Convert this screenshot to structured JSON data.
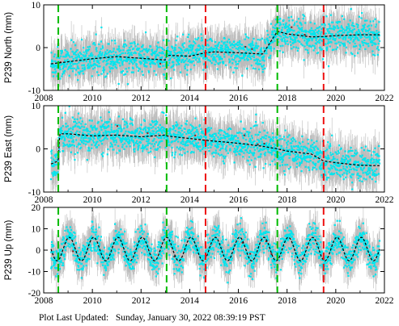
{
  "footer": {
    "label": "Plot Last Updated:",
    "timestamp": "Sunday, January 30, 2022 08:39:19 PST"
  },
  "colors": {
    "scatter": "#00e5ee",
    "error_bars": "#b5b5b5",
    "trend": "#000000",
    "outliers": "#8b1a1a",
    "green_lines": "#00bb00",
    "red_lines": "#ee1111"
  },
  "chart_data": [
    {
      "type": "scatter",
      "component": "north",
      "ylabel": "P239 North (mm)",
      "xlim": [
        2008,
        2022
      ],
      "ylim": [
        -10,
        10
      ],
      "x_ticks": [
        2008,
        2010,
        2012,
        2014,
        2016,
        2018,
        2020,
        2022
      ],
      "y_ticks": [
        -10,
        0,
        10
      ],
      "green_dashed_lines_year": [
        2008.6,
        2013.05,
        2017.6
      ],
      "red_dashed_lines_year": [
        2014.65,
        2019.5
      ],
      "trend": {
        "x": [
          2008.3,
          2009,
          2010,
          2011,
          2012,
          2013,
          2013.05,
          2014,
          2014.65,
          2015,
          2016,
          2017,
          2017.6,
          2018,
          2019,
          2019.5,
          2020,
          2021,
          2021.8
        ],
        "y": [
          -3.8,
          -3.3,
          -2.6,
          -2.1,
          -2.5,
          -2.9,
          -1.8,
          -2.0,
          -1.2,
          -1.0,
          -1.2,
          -1.5,
          3.8,
          3.2,
          2.5,
          2.6,
          2.8,
          3.0,
          3.0
        ]
      },
      "scatter_spread_mm": 2.5
    },
    {
      "type": "scatter",
      "component": "east",
      "ylabel": "P239 East (mm)",
      "xlim": [
        2008,
        2022
      ],
      "ylim": [
        -10,
        10
      ],
      "x_ticks": [
        2008,
        2010,
        2012,
        2014,
        2016,
        2018,
        2020,
        2022
      ],
      "y_ticks": [
        -10,
        0,
        10
      ],
      "green_dashed_lines_year": [
        2008.6,
        2013.05,
        2017.6
      ],
      "red_dashed_lines_year": [
        2014.65,
        2019.5
      ],
      "trend": {
        "x": [
          2008.3,
          2008.6,
          2008.65,
          2009,
          2010,
          2011,
          2012,
          2013,
          2013.05,
          2014,
          2014.65,
          2015,
          2016,
          2017,
          2017.6,
          2018,
          2019,
          2019.5,
          2020,
          2021,
          2021.8
        ],
        "y": [
          -3.5,
          -2.8,
          3.5,
          3.5,
          3.0,
          3.2,
          2.8,
          3.2,
          3.0,
          2.4,
          2.0,
          1.8,
          1.3,
          0.6,
          0.0,
          -0.5,
          -1.2,
          -2.8,
          -3.2,
          -3.8,
          -3.9
        ]
      },
      "scatter_spread_mm": 2.5
    },
    {
      "type": "scatter",
      "component": "up",
      "ylabel": "P239 Up (mm)",
      "xlim": [
        2008,
        2022
      ],
      "ylim": [
        -20,
        20
      ],
      "x_ticks": [
        2008,
        2010,
        2012,
        2014,
        2016,
        2018,
        2020,
        2022
      ],
      "y_ticks": [
        -20,
        -10,
        0,
        10,
        20
      ],
      "green_dashed_lines_year": [
        2008.6,
        2013.05,
        2017.6
      ],
      "red_dashed_lines_year": [
        2014.65,
        2019.5
      ],
      "trend": {
        "baseline_mm": 0.5,
        "seasonal_amplitude_mm": 5.5,
        "peak_fraction_of_year": 0.05,
        "x_start": 2008.3,
        "x_end": 2021.8
      },
      "scatter_spread_mm": 4.5
    }
  ]
}
